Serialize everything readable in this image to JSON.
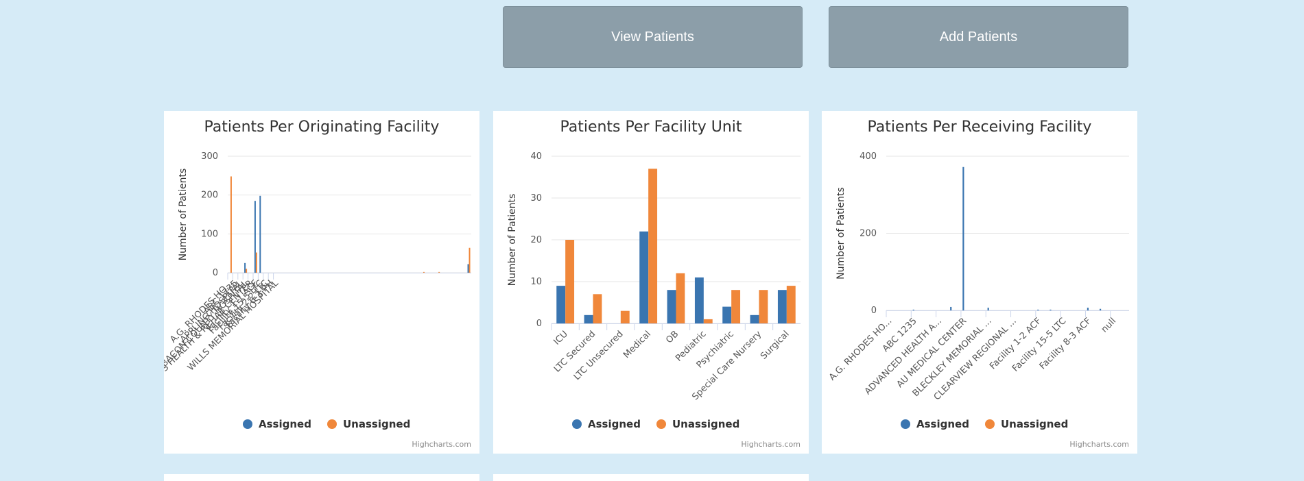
{
  "buttons": {
    "view_label": "View Patients",
    "add_label": "Add Patients"
  },
  "colors": {
    "assigned": "#3a75b0",
    "unassigned": "#f0873a",
    "grid": "#e6e6e6",
    "axis": "#ccd6eb"
  },
  "legend": {
    "assigned": "Assigned",
    "unassigned": "Unassigned"
  },
  "credits": "Highcharts.com",
  "chart_data": [
    {
      "type": "bar",
      "title": "Patients Per Originating Facility",
      "ylabel": "Number of Patients",
      "ylim": [
        0,
        300
      ],
      "yticks": [
        0,
        100,
        200,
        300
      ],
      "categories": [
        "A.G. RHODES HO...",
        "ABC 1235",
        "APPLING HOSPITAL",
        "BACON COUNTY HOSPITAL",
        "BROWN'S HEALTH & REHAB CENTER",
        "Facility 1-1 ACF",
        "Facility 15-5 LTC",
        "Facility 2-2 LTC",
        "Facility 6-3 PH",
        "WILLS MEMORIAL HOSPITAL"
      ],
      "tick_positions": [
        0,
        1,
        2,
        3,
        4,
        5,
        6,
        7,
        8,
        9
      ],
      "x": [
        0,
        1,
        2,
        3,
        4,
        5,
        6,
        7,
        8,
        9,
        10,
        11,
        12,
        13,
        14,
        15,
        16,
        17,
        18,
        19,
        20,
        21,
        22,
        23,
        24,
        25,
        26,
        27,
        28,
        29,
        30,
        31,
        32,
        33,
        34,
        35,
        36,
        37,
        38,
        39,
        40,
        41,
        42,
        43,
        44,
        45,
        46,
        47
      ],
      "series": [
        {
          "name": "Assigned",
          "values": [
            0,
            0,
            0,
            25,
            0,
            185,
            198,
            0,
            0,
            0,
            0,
            0,
            0,
            0,
            0,
            0,
            0,
            0,
            0,
            0,
            0,
            0,
            0,
            0,
            0,
            0,
            0,
            0,
            0,
            0,
            0,
            0,
            0,
            0,
            0,
            0,
            0,
            0,
            0,
            0,
            0,
            0,
            0,
            0,
            0,
            0,
            0,
            22
          ]
        },
        {
          "name": "Unassigned",
          "values": [
            248,
            0,
            0,
            10,
            0,
            52,
            0,
            0,
            0,
            0,
            0,
            0,
            0,
            0,
            0,
            0,
            0,
            0,
            0,
            0,
            0,
            0,
            0,
            0,
            0,
            0,
            0,
            0,
            0,
            0,
            0,
            0,
            0,
            0,
            0,
            0,
            0,
            0,
            2,
            0,
            0,
            2,
            0,
            0,
            0,
            0,
            0,
            64
          ]
        }
      ]
    },
    {
      "type": "bar",
      "title": "Patients Per Facility Unit",
      "ylabel": "Number of Patients",
      "ylim": [
        0,
        40
      ],
      "yticks": [
        0,
        10,
        20,
        30,
        40
      ],
      "categories": [
        "ICU",
        "LTC Secured",
        "LTC Unsecured",
        "Medical",
        "OB",
        "Pediatric",
        "Psychiatric",
        "Special Care Nursery",
        "Surgical"
      ],
      "series": [
        {
          "name": "Assigned",
          "values": [
            9,
            2,
            0,
            22,
            8,
            11,
            4,
            2,
            8
          ]
        },
        {
          "name": "Unassigned",
          "values": [
            20,
            7,
            3,
            37,
            12,
            1,
            8,
            8,
            9
          ]
        }
      ]
    },
    {
      "type": "bar",
      "title": "Patients Per Receiving Facility",
      "ylabel": "Number of Patients",
      "ylim": [
        0,
        400
      ],
      "yticks": [
        0,
        200,
        400
      ],
      "categories": [
        "A.G. RHODES HO...",
        "ABC 1235",
        "ADVANCED HEALTH A...",
        "AU MEDICAL CENTER",
        "BLECKLEY MEMORIAL ...",
        "CLEARVIEW REGIONAL ...",
        "Facility 1-2 ACF",
        "Facility 15-5 LTC",
        "Facility 8-3 ACF",
        "null"
      ],
      "tick_positions": [
        0,
        4,
        8,
        12,
        16,
        20,
        24,
        28,
        32,
        36
      ],
      "x": [
        0,
        1,
        2,
        3,
        4,
        5,
        6,
        7,
        8,
        9,
        10,
        11,
        12,
        13,
        14,
        15,
        16,
        17,
        18,
        19,
        20,
        21,
        22,
        23,
        24,
        25,
        26,
        27,
        28,
        29,
        30,
        31,
        32,
        33,
        34,
        35,
        36,
        37,
        38
      ],
      "series": [
        {
          "name": "Assigned",
          "values": [
            0,
            0,
            0,
            0,
            2,
            0,
            0,
            0,
            0,
            0,
            9,
            0,
            372,
            0,
            0,
            0,
            7,
            0,
            0,
            0,
            0,
            0,
            0,
            0,
            2,
            0,
            2,
            0,
            0,
            0,
            0,
            0,
            7,
            0,
            4,
            0,
            0,
            0,
            0
          ]
        },
        {
          "name": "Unassigned",
          "values": [
            0,
            0,
            0,
            0,
            0,
            0,
            0,
            0,
            0,
            0,
            0,
            0,
            0,
            0,
            0,
            0,
            0,
            0,
            0,
            0,
            0,
            0,
            0,
            0,
            0,
            0,
            0,
            0,
            0,
            0,
            0,
            0,
            0,
            0,
            0,
            0,
            0,
            0,
            0
          ]
        }
      ]
    }
  ]
}
